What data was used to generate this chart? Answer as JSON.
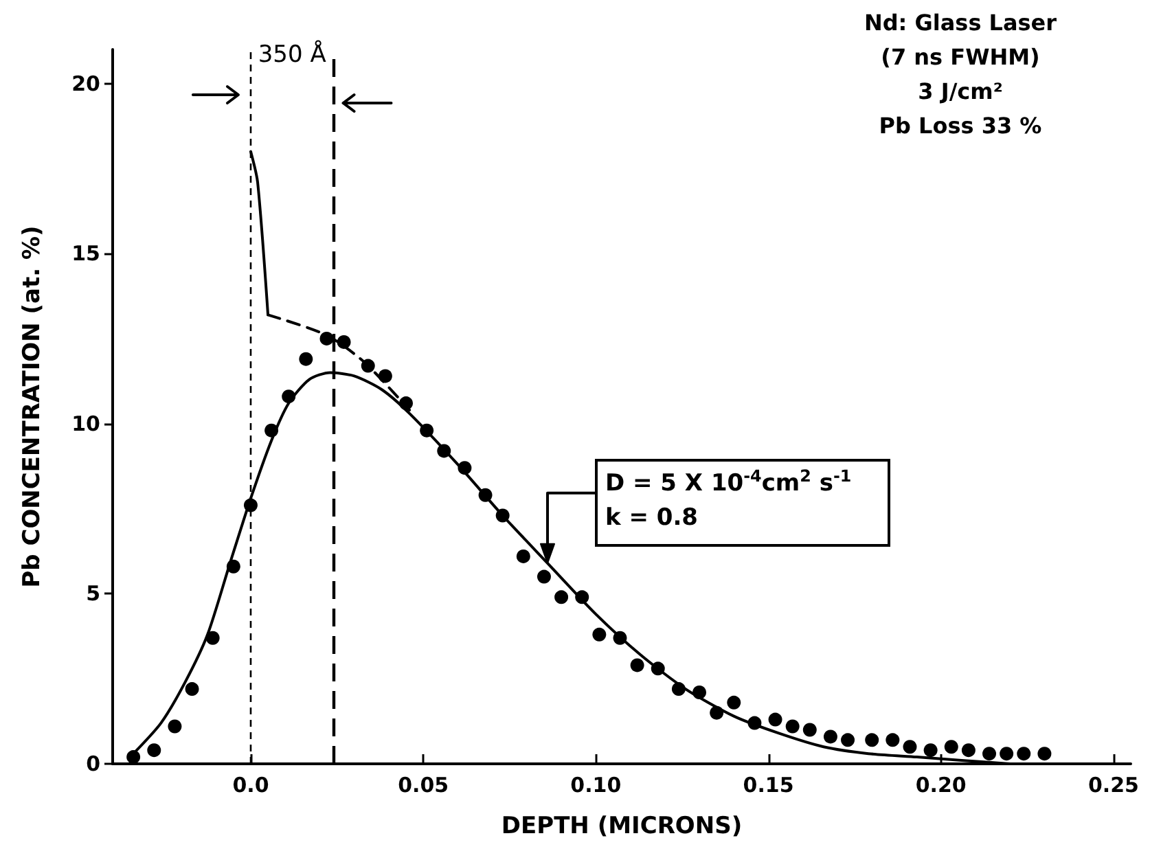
{
  "chart_data": {
    "type": "scatter",
    "xlabel": "DEPTH (MICRONS)",
    "ylabel": "Pb CONCENTRATION (at. %)",
    "xlim": [
      -0.04,
      0.255
    ],
    "xticks": [
      {
        "value": 0,
        "label": "0.0"
      },
      0.05,
      {
        "value": 0.1,
        "label": "0.10"
      },
      0.15,
      {
        "value": 0.2,
        "label": "0.20"
      },
      0.25
    ],
    "ylim": [
      0,
      21
    ],
    "yticks": [
      0,
      5,
      10,
      15,
      20
    ],
    "series": [
      {
        "color": "#000000",
        "marker": "circle",
        "x": [
          -0.034,
          -0.028,
          -0.022,
          -0.017,
          -0.011,
          -0.005,
          0.0,
          0.006,
          0.011,
          0.016,
          0.022,
          0.027,
          0.034,
          0.039,
          0.045,
          0.051,
          0.056,
          0.062,
          0.068,
          0.073,
          0.079,
          0.085,
          0.09,
          0.096,
          0.101,
          0.107,
          0.112,
          0.118,
          0.124,
          0.13,
          0.135,
          0.14,
          0.146,
          0.152,
          0.157,
          0.162,
          0.168,
          0.173,
          0.18,
          0.186,
          0.191,
          0.197,
          0.203,
          0.208,
          0.214,
          0.219,
          0.224,
          0.23
        ],
        "values": [
          0.2,
          0.4,
          1.1,
          2.2,
          3.7,
          5.8,
          7.6,
          9.8,
          10.8,
          11.9,
          12.5,
          12.4,
          11.7,
          11.4,
          10.6,
          9.8,
          9.2,
          8.7,
          7.9,
          7.3,
          6.1,
          5.5,
          4.9,
          4.9,
          3.8,
          3.7,
          2.9,
          2.8,
          2.2,
          2.1,
          1.5,
          1.8,
          1.2,
          1.3,
          1.1,
          1.0,
          0.8,
          0.7,
          0.7,
          0.7,
          0.5,
          0.4,
          0.5,
          0.4,
          0.3,
          0.3,
          0.3,
          0.3
        ]
      },
      {
        "type": "line",
        "color": "#000000",
        "x": [
          -0.034,
          -0.026,
          -0.019,
          -0.0125,
          -0.006,
          0.0,
          0.006,
          0.011,
          0.017,
          0.023,
          0.03,
          0.038,
          0.046,
          0.06,
          0.073,
          0.086,
          0.1,
          0.113,
          0.126,
          0.14,
          0.153,
          0.166,
          0.179,
          0.193,
          0.206,
          0.22
        ],
        "values": [
          0.3,
          1.2,
          2.4,
          3.8,
          5.9,
          7.8,
          9.5,
          10.6,
          11.3,
          11.5,
          11.4,
          11.0,
          10.3,
          8.8,
          7.3,
          5.9,
          4.4,
          3.2,
          2.2,
          1.4,
          0.9,
          0.5,
          0.3,
          0.2,
          0.1,
          0.0
        ]
      },
      {
        "type": "line",
        "color": "#000000",
        "x": [
          0.0,
          0.002,
          0.005
        ],
        "values": [
          18.0,
          17.1,
          13.2
        ]
      },
      {
        "type": "line",
        "color": "#000000",
        "line_style": "dashed",
        "x": [
          0.005,
          0.022,
          0.033,
          0.046
        ],
        "values": [
          13.2,
          12.6,
          11.8,
          10.4
        ]
      }
    ],
    "ref_lines": [
      {
        "axis": "x",
        "value": 0,
        "line_style": "dashed"
      },
      {
        "axis": "x",
        "value": 0.024,
        "line_style": "dashed"
      }
    ],
    "annotations": [
      "Nd: Glass Laser",
      "(7 ns FWHM)",
      "3 J/cm²",
      "Pb Loss 33 %",
      "350 Å",
      {
        "text": "D = 5 X 10$^{-4}$cm$^{2}$ s$^{-1}$",
        "x": 0.086,
        "y": 5.9
      },
      {
        "text": "k = 0.8",
        "x": 0.086,
        "y": 5.9
      }
    ]
  }
}
